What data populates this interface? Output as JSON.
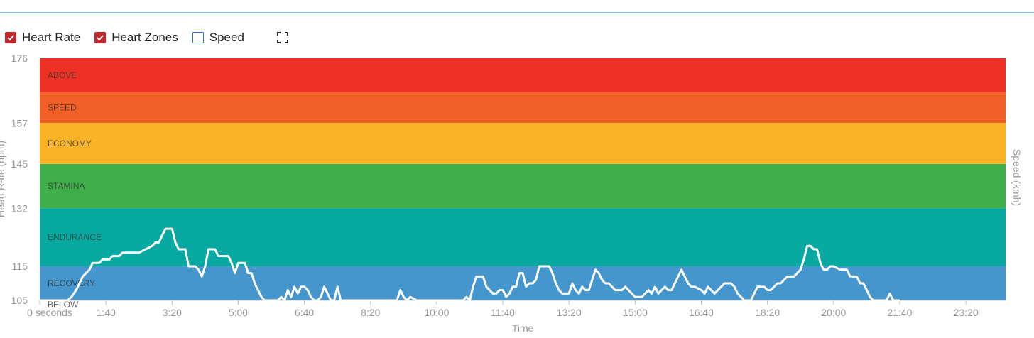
{
  "toolbar": {
    "heart_rate_label": "Heart Rate",
    "heart_zones_label": "Heart Zones",
    "speed_label": "Speed",
    "heart_rate_checked": true,
    "heart_zones_checked": true,
    "speed_checked": false
  },
  "chart_data": {
    "type": "line",
    "xlabel": "Time",
    "ylabel": "Heart Rate (bpm)",
    "y2label": "Speed (kmh)",
    "ylim": [
      105,
      176
    ],
    "xlim_seconds": [
      0,
      1460
    ],
    "y_ticks": [
      105,
      115,
      132,
      145,
      157,
      176
    ],
    "x_ticks": [
      {
        "t": 0,
        "label": "0 seconds"
      },
      {
        "t": 100,
        "label": "1:40"
      },
      {
        "t": 200,
        "label": "3:20"
      },
      {
        "t": 300,
        "label": "5:00"
      },
      {
        "t": 400,
        "label": "6:40"
      },
      {
        "t": 500,
        "label": "8:20"
      },
      {
        "t": 600,
        "label": "10:00"
      },
      {
        "t": 700,
        "label": "11:40"
      },
      {
        "t": 800,
        "label": "13:20"
      },
      {
        "t": 900,
        "label": "15:00"
      },
      {
        "t": 1000,
        "label": "16:40"
      },
      {
        "t": 1100,
        "label": "18:20"
      },
      {
        "t": 1200,
        "label": "20:00"
      },
      {
        "t": 1300,
        "label": "21:40"
      },
      {
        "t": 1400,
        "label": "23:20"
      }
    ],
    "zones": [
      {
        "name": "BELOW",
        "from": 96,
        "to": 105,
        "color": "#4496cc"
      },
      {
        "name": "RECOVERY",
        "from": 105,
        "to": 115,
        "color": "#4496cc"
      },
      {
        "name": "ENDURANCE",
        "from": 115,
        "to": 132,
        "color": "#08a9a0"
      },
      {
        "name": "STAMINA",
        "from": 132,
        "to": 145,
        "color": "#40ae4b"
      },
      {
        "name": "ECONOMY",
        "from": 145,
        "to": 157,
        "color": "#fbb326"
      },
      {
        "name": "SPEED",
        "from": 157,
        "to": 166,
        "color": "#f16027"
      },
      {
        "name": "ABOVE",
        "from": 166,
        "to": 176,
        "color": "#ed3024"
      }
    ],
    "series": [
      {
        "color": "#ffffff",
        "points": [
          [
            0,
            103
          ],
          [
            30,
            103
          ],
          [
            35,
            104
          ],
          [
            42,
            105
          ],
          [
            48,
            106
          ],
          [
            55,
            108
          ],
          [
            60,
            110
          ],
          [
            65,
            112
          ],
          [
            70,
            113
          ],
          [
            75,
            114
          ],
          [
            80,
            116
          ],
          [
            90,
            116
          ],
          [
            95,
            117
          ],
          [
            105,
            117
          ],
          [
            110,
            118
          ],
          [
            120,
            118
          ],
          [
            125,
            119
          ],
          [
            150,
            119
          ],
          [
            160,
            120
          ],
          [
            170,
            121
          ],
          [
            175,
            122
          ],
          [
            180,
            122
          ],
          [
            185,
            124
          ],
          [
            190,
            126
          ],
          [
            200,
            126
          ],
          [
            205,
            122
          ],
          [
            210,
            120
          ],
          [
            220,
            120
          ],
          [
            225,
            115
          ],
          [
            235,
            115
          ],
          [
            240,
            114
          ],
          [
            245,
            112
          ],
          [
            250,
            115
          ],
          [
            255,
            120
          ],
          [
            265,
            120
          ],
          [
            270,
            118
          ],
          [
            285,
            118
          ],
          [
            290,
            116
          ],
          [
            295,
            113
          ],
          [
            300,
            116
          ],
          [
            310,
            116
          ],
          [
            315,
            113
          ],
          [
            320,
            113
          ],
          [
            325,
            110
          ],
          [
            330,
            108
          ],
          [
            335,
            106
          ],
          [
            340,
            104
          ],
          [
            345,
            103
          ],
          [
            360,
            103
          ],
          [
            365,
            106
          ],
          [
            370,
            104
          ],
          [
            375,
            108
          ],
          [
            380,
            106
          ],
          [
            385,
            109
          ],
          [
            390,
            107
          ],
          [
            395,
            109
          ],
          [
            400,
            109
          ],
          [
            405,
            108
          ],
          [
            410,
            106
          ],
          [
            415,
            104
          ],
          [
            420,
            103
          ],
          [
            425,
            106
          ],
          [
            430,
            109
          ],
          [
            435,
            107
          ],
          [
            440,
            103
          ],
          [
            445,
            105
          ],
          [
            450,
            109
          ],
          [
            455,
            104
          ],
          [
            460,
            103
          ],
          [
            540,
            103
          ],
          [
            545,
            108
          ],
          [
            550,
            106
          ],
          [
            555,
            104
          ],
          [
            560,
            106
          ],
          [
            570,
            103
          ],
          [
            640,
            103
          ],
          [
            645,
            106
          ],
          [
            650,
            104
          ],
          [
            655,
            109
          ],
          [
            660,
            112
          ],
          [
            670,
            112
          ],
          [
            675,
            109
          ],
          [
            680,
            108
          ],
          [
            685,
            107
          ],
          [
            690,
            107
          ],
          [
            695,
            108
          ],
          [
            700,
            108
          ],
          [
            705,
            106
          ],
          [
            710,
            107
          ],
          [
            715,
            109
          ],
          [
            720,
            109
          ],
          [
            725,
            113
          ],
          [
            730,
            113
          ],
          [
            735,
            109
          ],
          [
            740,
            110
          ],
          [
            745,
            110
          ],
          [
            750,
            111
          ],
          [
            755,
            115
          ],
          [
            770,
            115
          ],
          [
            775,
            113
          ],
          [
            780,
            110
          ],
          [
            785,
            108
          ],
          [
            790,
            107
          ],
          [
            800,
            107
          ],
          [
            805,
            110
          ],
          [
            810,
            108
          ],
          [
            815,
            107
          ],
          [
            820,
            109
          ],
          [
            825,
            108
          ],
          [
            830,
            108
          ],
          [
            835,
            111
          ],
          [
            840,
            114
          ],
          [
            845,
            113
          ],
          [
            850,
            111
          ],
          [
            855,
            110
          ],
          [
            860,
            110
          ],
          [
            865,
            109
          ],
          [
            870,
            108
          ],
          [
            880,
            108
          ],
          [
            885,
            109
          ],
          [
            890,
            108
          ],
          [
            895,
            107
          ],
          [
            900,
            106
          ],
          [
            910,
            106
          ],
          [
            915,
            107
          ],
          [
            920,
            108
          ],
          [
            925,
            107
          ],
          [
            930,
            109
          ],
          [
            935,
            107
          ],
          [
            940,
            108
          ],
          [
            945,
            109
          ],
          [
            950,
            108
          ],
          [
            955,
            108
          ],
          [
            960,
            110
          ],
          [
            965,
            112
          ],
          [
            970,
            114
          ],
          [
            975,
            112
          ],
          [
            980,
            110
          ],
          [
            985,
            109
          ],
          [
            990,
            109
          ],
          [
            1000,
            108
          ],
          [
            1005,
            107
          ],
          [
            1010,
            109
          ],
          [
            1015,
            108
          ],
          [
            1020,
            107
          ],
          [
            1025,
            108
          ],
          [
            1030,
            109
          ],
          [
            1035,
            110
          ],
          [
            1040,
            110
          ],
          [
            1045,
            110
          ],
          [
            1050,
            109
          ],
          [
            1055,
            107
          ],
          [
            1060,
            106
          ],
          [
            1065,
            105
          ],
          [
            1070,
            104
          ],
          [
            1075,
            105
          ],
          [
            1080,
            107
          ],
          [
            1085,
            109
          ],
          [
            1090,
            109
          ],
          [
            1095,
            109
          ],
          [
            1100,
            108
          ],
          [
            1105,
            108
          ],
          [
            1110,
            109
          ],
          [
            1115,
            110
          ],
          [
            1120,
            110
          ],
          [
            1125,
            111
          ],
          [
            1130,
            112
          ],
          [
            1140,
            112
          ],
          [
            1145,
            113
          ],
          [
            1150,
            114
          ],
          [
            1155,
            117
          ],
          [
            1160,
            121
          ],
          [
            1165,
            121
          ],
          [
            1170,
            120
          ],
          [
            1175,
            120
          ],
          [
            1180,
            116
          ],
          [
            1185,
            114
          ],
          [
            1190,
            114
          ],
          [
            1195,
            115
          ],
          [
            1200,
            115
          ],
          [
            1210,
            114
          ],
          [
            1220,
            114
          ],
          [
            1225,
            112
          ],
          [
            1235,
            112
          ],
          [
            1240,
            110
          ],
          [
            1245,
            110
          ],
          [
            1250,
            108
          ],
          [
            1255,
            106
          ],
          [
            1260,
            104
          ],
          [
            1265,
            103
          ],
          [
            1280,
            103
          ],
          [
            1285,
            107
          ],
          [
            1290,
            105
          ],
          [
            1300,
            103
          ]
        ]
      }
    ]
  }
}
